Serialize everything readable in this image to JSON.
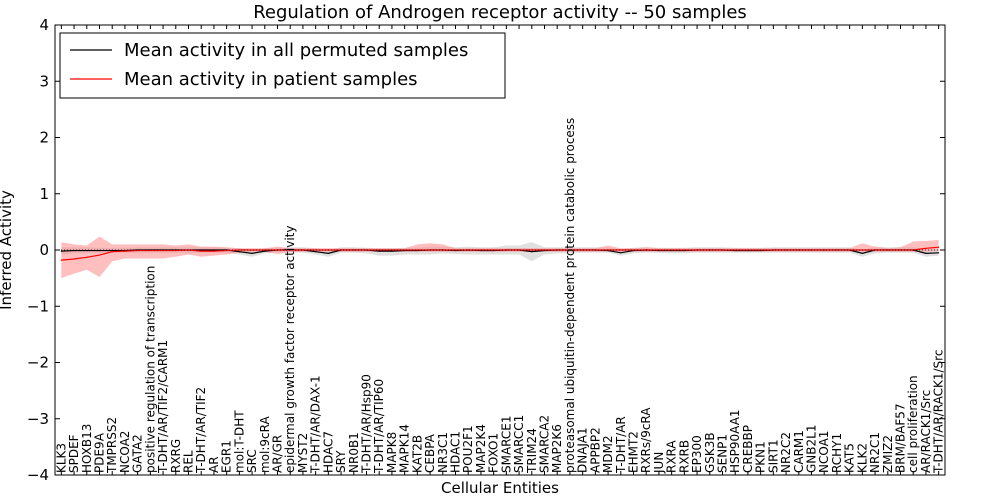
{
  "chart_data": {
    "type": "line",
    "title": "Regulation of Androgen receptor activity -- 50 samples",
    "xlabel": "Cellular Entities",
    "ylabel": "Inferred Activity",
    "ylim": [
      -4,
      4
    ],
    "yticks": [
      4,
      3,
      2,
      1,
      0,
      -1,
      -2,
      -3,
      -4
    ],
    "grid": false,
    "legend_placement": "top-left",
    "categories": [
      "KLK3",
      "SPDEF",
      "HOXB13",
      "PDE9A",
      "TMPRSS2",
      "NCOA2",
      "GATA2",
      "positive regulation of transcription",
      "T-DHT/AR/TIF2/CARM1",
      "RXRG",
      "REL",
      "T-DHT/AR/TIF2",
      "AR",
      "EGR1",
      "mol:T-DHT",
      "SRC",
      "mol:9cRA",
      "AR/GR",
      "epidermal growth factor receptor activity",
      "MYST2",
      "T-DHT/AR/DAX-1",
      "HDAC7",
      "SRY",
      "NR0B1",
      "T-DHT/AR/Hsp90",
      "T-DHT/AR/TIP60",
      "MAPK8",
      "MAPK14",
      "KAT2B",
      "CEBPA",
      "NR3C1",
      "HDAC1",
      "POU2F1",
      "MAP2K4",
      "FOXO1",
      "SMARCE1",
      "SMARCC1",
      "TRIM24",
      "SMARCA2",
      "MAP2K6",
      "proteasomal ubiquitin-dependent protein catabolic process",
      "DNAJA1",
      "APPBP2",
      "MDM2",
      "T-DHT/AR",
      "EHMT2",
      "RXRs/9cRA",
      "JUN",
      "RXRA",
      "RXRB",
      "EP300",
      "GSK3B",
      "SENP1",
      "HSP90AA1",
      "CREBBP",
      "PKN1",
      "SIRT1",
      "NR2C2",
      "CARM1",
      "GNB2L1",
      "NCOA1",
      "RCHY1",
      "KAT5",
      "KLK2",
      "NR2C1",
      "ZMIZ2",
      "BRM/BAF57",
      "cell proliferation",
      "AR/RACK1/Src",
      "T-DHT/AR/RACK1/Src"
    ],
    "series": [
      {
        "name": "Mean activity in all permuted samples",
        "color": "#000000",
        "band_color": "#bbbbbb",
        "values": [
          -0.02,
          -0.01,
          -0.01,
          -0.01,
          -0.01,
          -0.01,
          0.0,
          0.0,
          0.0,
          0.0,
          0.0,
          0.0,
          0.0,
          0.0,
          -0.03,
          -0.06,
          -0.02,
          0.0,
          0.0,
          0.0,
          -0.03,
          -0.06,
          0.0,
          0.0,
          0.0,
          -0.02,
          -0.02,
          -0.01,
          -0.01,
          0.0,
          0.0,
          -0.01,
          0.0,
          -0.01,
          -0.01,
          0.0,
          0.0,
          -0.03,
          -0.01,
          0.0,
          0.0,
          0.0,
          0.0,
          -0.01,
          -0.05,
          -0.01,
          0.0,
          -0.01,
          -0.01,
          -0.01,
          0.0,
          0.0,
          0.0,
          -0.01,
          -0.01,
          -0.01,
          0.0,
          0.0,
          0.0,
          0.0,
          0.0,
          0.0,
          0.0,
          -0.06,
          0.0,
          0.0,
          0.0,
          0.0,
          -0.06,
          -0.05
        ],
        "lower": [
          -0.08,
          -0.06,
          -0.05,
          -0.05,
          -0.05,
          -0.05,
          -0.05,
          -0.05,
          -0.05,
          -0.05,
          -0.05,
          -0.05,
          -0.05,
          -0.05,
          -0.08,
          -0.12,
          -0.06,
          -0.04,
          -0.04,
          -0.05,
          -0.08,
          -0.12,
          -0.05,
          -0.05,
          -0.06,
          -0.1,
          -0.1,
          -0.08,
          -0.08,
          -0.08,
          -0.06,
          -0.07,
          -0.08,
          -0.08,
          -0.08,
          -0.08,
          -0.08,
          -0.2,
          -0.08,
          -0.06,
          -0.06,
          -0.05,
          -0.05,
          -0.05,
          -0.1,
          -0.06,
          -0.05,
          -0.05,
          -0.06,
          -0.06,
          -0.05,
          -0.05,
          -0.05,
          -0.05,
          -0.05,
          -0.05,
          -0.05,
          -0.05,
          -0.05,
          -0.05,
          -0.05,
          -0.05,
          -0.05,
          -0.12,
          -0.06,
          -0.05,
          -0.05,
          -0.05,
          -0.12,
          -0.1
        ],
        "upper": [
          0.05,
          0.05,
          0.05,
          0.04,
          0.04,
          0.04,
          0.05,
          0.05,
          0.05,
          0.05,
          0.05,
          0.05,
          0.05,
          0.04,
          0.03,
          0.0,
          0.03,
          0.04,
          0.05,
          0.05,
          0.03,
          0.0,
          0.05,
          0.05,
          0.04,
          0.03,
          0.03,
          0.04,
          0.04,
          0.06,
          0.06,
          0.05,
          0.06,
          0.05,
          0.05,
          0.08,
          0.08,
          0.14,
          0.05,
          0.05,
          0.05,
          0.05,
          0.05,
          0.04,
          0.02,
          0.04,
          0.05,
          0.04,
          0.04,
          0.04,
          0.05,
          0.05,
          0.05,
          0.04,
          0.04,
          0.04,
          0.05,
          0.05,
          0.05,
          0.05,
          0.05,
          0.05,
          0.05,
          0.0,
          0.05,
          0.05,
          0.05,
          0.05,
          0.02,
          0.02
        ]
      },
      {
        "name": "Mean activity in patient samples",
        "color": "#ff0000",
        "band_color": "#ff8080",
        "values": [
          -0.18,
          -0.16,
          -0.13,
          -0.09,
          -0.03,
          -0.02,
          -0.01,
          -0.01,
          -0.01,
          -0.01,
          0.0,
          -0.02,
          -0.02,
          -0.01,
          0.0,
          0.0,
          0.0,
          0.0,
          0.0,
          0.0,
          0.0,
          0.0,
          0.0,
          0.0,
          0.0,
          0.0,
          0.0,
          0.0,
          0.0,
          0.0,
          0.0,
          0.0,
          0.0,
          0.0,
          0.0,
          0.0,
          0.0,
          0.0,
          0.0,
          0.0,
          0.0,
          0.0,
          0.0,
          0.0,
          0.0,
          0.0,
          0.0,
          0.0,
          0.0,
          0.0,
          0.0,
          0.0,
          0.0,
          0.0,
          0.0,
          0.0,
          0.0,
          0.0,
          0.0,
          0.0,
          0.0,
          0.0,
          0.0,
          0.0,
          0.0,
          0.0,
          0.0,
          0.0,
          0.03,
          0.05
        ],
        "lower": [
          -0.5,
          -0.42,
          -0.35,
          -0.48,
          -0.2,
          -0.15,
          -0.15,
          -0.15,
          -0.15,
          -0.12,
          -0.08,
          -0.12,
          -0.1,
          -0.08,
          -0.05,
          -0.03,
          -0.03,
          -0.07,
          -0.04,
          -0.03,
          -0.03,
          -0.03,
          -0.03,
          -0.03,
          -0.03,
          -0.03,
          -0.03,
          -0.03,
          -0.03,
          -0.03,
          -0.03,
          -0.03,
          -0.03,
          -0.03,
          -0.03,
          -0.03,
          -0.03,
          -0.03,
          -0.03,
          -0.03,
          -0.03,
          -0.03,
          -0.03,
          -0.03,
          -0.03,
          -0.03,
          -0.03,
          -0.03,
          -0.03,
          -0.03,
          -0.03,
          -0.03,
          -0.03,
          -0.03,
          -0.03,
          -0.03,
          -0.03,
          -0.03,
          -0.03,
          -0.03,
          -0.03,
          -0.03,
          -0.03,
          -0.03,
          -0.03,
          -0.03,
          -0.03,
          -0.03,
          -0.03,
          -0.02
        ],
        "upper": [
          0.14,
          0.1,
          0.08,
          0.24,
          0.1,
          0.1,
          0.1,
          0.1,
          0.1,
          0.08,
          0.1,
          0.06,
          0.06,
          0.05,
          0.03,
          0.03,
          0.03,
          0.06,
          0.03,
          0.03,
          0.03,
          0.03,
          0.03,
          0.03,
          0.03,
          0.03,
          0.03,
          0.03,
          0.1,
          0.12,
          0.1,
          0.03,
          0.03,
          0.03,
          0.03,
          0.03,
          0.03,
          0.03,
          0.03,
          0.03,
          0.03,
          0.03,
          0.03,
          0.08,
          0.03,
          0.03,
          0.05,
          0.03,
          0.03,
          0.03,
          0.03,
          0.03,
          0.03,
          0.03,
          0.03,
          0.03,
          0.03,
          0.03,
          0.03,
          0.03,
          0.03,
          0.03,
          0.03,
          0.12,
          0.06,
          0.03,
          0.05,
          0.15,
          0.16,
          0.18
        ]
      }
    ]
  }
}
